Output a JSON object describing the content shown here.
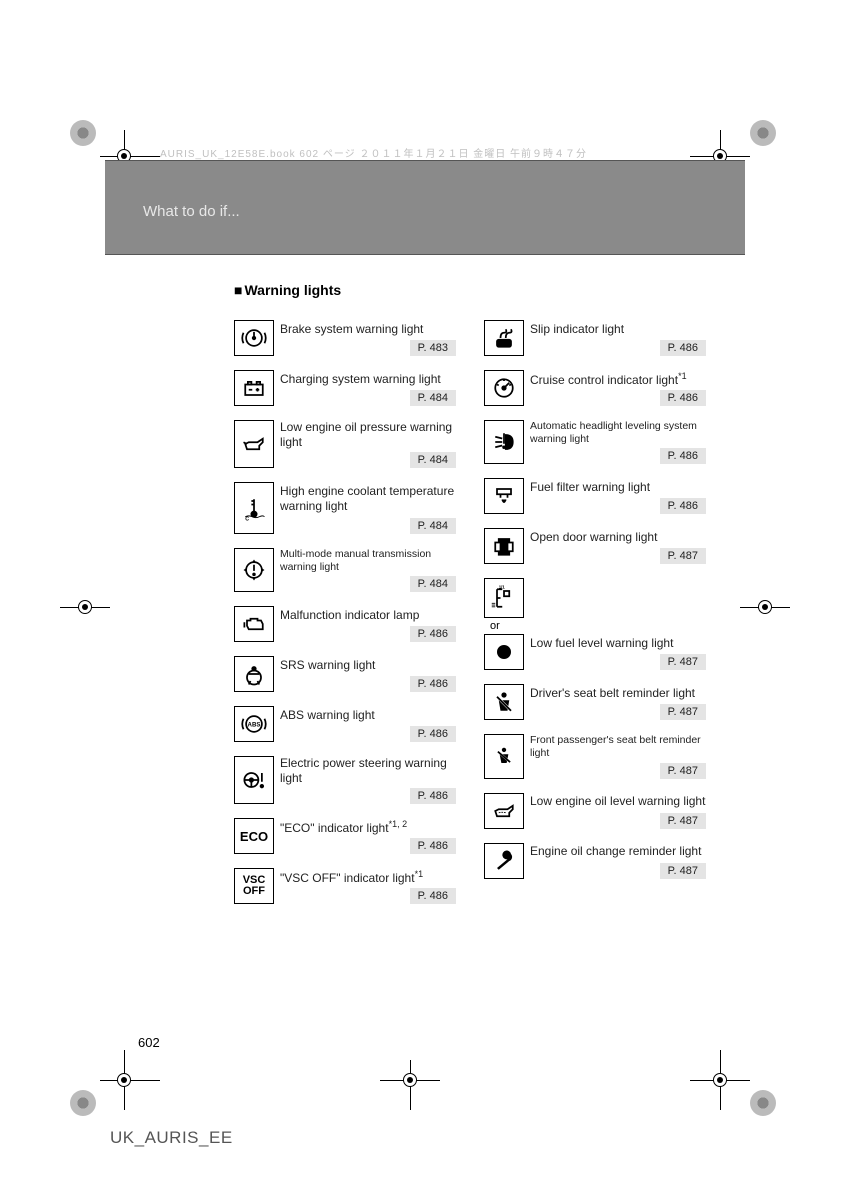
{
  "meta": {
    "print_line": "AURIS_UK_12E58E.book  602 ページ  ２０１１年１月２１日  金曜日  午前９時４７分",
    "header_title": "What to do if...",
    "section_title": "Warning lights",
    "page_number": "602",
    "footer": "UK_AURIS_EE"
  },
  "colors": {
    "header_bg": "#8a8a8a",
    "header_text": "#e8e8e8",
    "ref_bg": "#e4e4e4",
    "text": "#222222"
  },
  "left": [
    {
      "icon": "brake",
      "label": "Brake system warning light",
      "page": "P. 483",
      "size": "normal"
    },
    {
      "icon": "battery",
      "label": "Charging system warning light",
      "page": "P. 484",
      "size": "normal"
    },
    {
      "icon": "oilcan",
      "label": "Low engine oil pressure warning light",
      "page": "P. 484",
      "size": "normal"
    },
    {
      "icon": "temp",
      "label": "High engine coolant temperature warning light",
      "page": "P. 484",
      "size": "normal",
      "tall": true
    },
    {
      "icon": "gear-exc",
      "label": "Multi-mode manual transmission warning light",
      "page": "P. 484",
      "size": "small"
    },
    {
      "icon": "engine",
      "label": "Malfunction indicator lamp",
      "page": "P. 486",
      "size": "normal"
    },
    {
      "icon": "srs",
      "label": "SRS warning light",
      "page": "P. 486",
      "size": "normal"
    },
    {
      "icon": "abs",
      "label": "ABS warning light",
      "page": "P. 486",
      "size": "normal"
    },
    {
      "icon": "eps",
      "label": "Electric power steering warning light",
      "page": "P. 486",
      "size": "normal"
    },
    {
      "icon": "eco",
      "label": "\"ECO\" indicator light",
      "sup": "*1, 2",
      "page": "P. 486",
      "size": "normal"
    },
    {
      "icon": "vscoff",
      "label": "\"VSC OFF\" indicator light",
      "sup": "*1",
      "page": "P. 486",
      "size": "normal"
    }
  ],
  "right": [
    {
      "icon": "slip",
      "label": "Slip indicator light",
      "page": "P. 486",
      "size": "normal"
    },
    {
      "icon": "cruise",
      "label": "Cruise control indicator light",
      "sup": "*1",
      "page": "P. 486",
      "size": "normal"
    },
    {
      "icon": "headlight",
      "label": "Automatic headlight leveling system warning light",
      "page": "P. 486",
      "size": "small"
    },
    {
      "icon": "fuelfilter",
      "label": "Fuel filter warning light",
      "page": "P. 486",
      "size": "normal"
    },
    {
      "icon": "door",
      "label": "Open door warning light",
      "page": "P. 487",
      "size": "normal"
    },
    {
      "icon": "fuelgauge",
      "or": "or",
      "icon2": "dot",
      "label": "Low fuel level warning light",
      "page": "P. 487",
      "size": "normal",
      "compound": true
    },
    {
      "icon": "seatbelt",
      "label": "Driver's seat belt reminder light",
      "page": "P. 487",
      "size": "normal"
    },
    {
      "icon": "seatbelt-p",
      "label": "Front passenger's seat belt reminder light",
      "page": "P. 487",
      "size": "small"
    },
    {
      "icon": "oillevel",
      "label": "Low engine oil level warning light",
      "page": "P. 487",
      "size": "normal"
    },
    {
      "icon": "wrench",
      "label": "Engine oil change reminder light",
      "page": "P. 487",
      "size": "normal"
    }
  ]
}
